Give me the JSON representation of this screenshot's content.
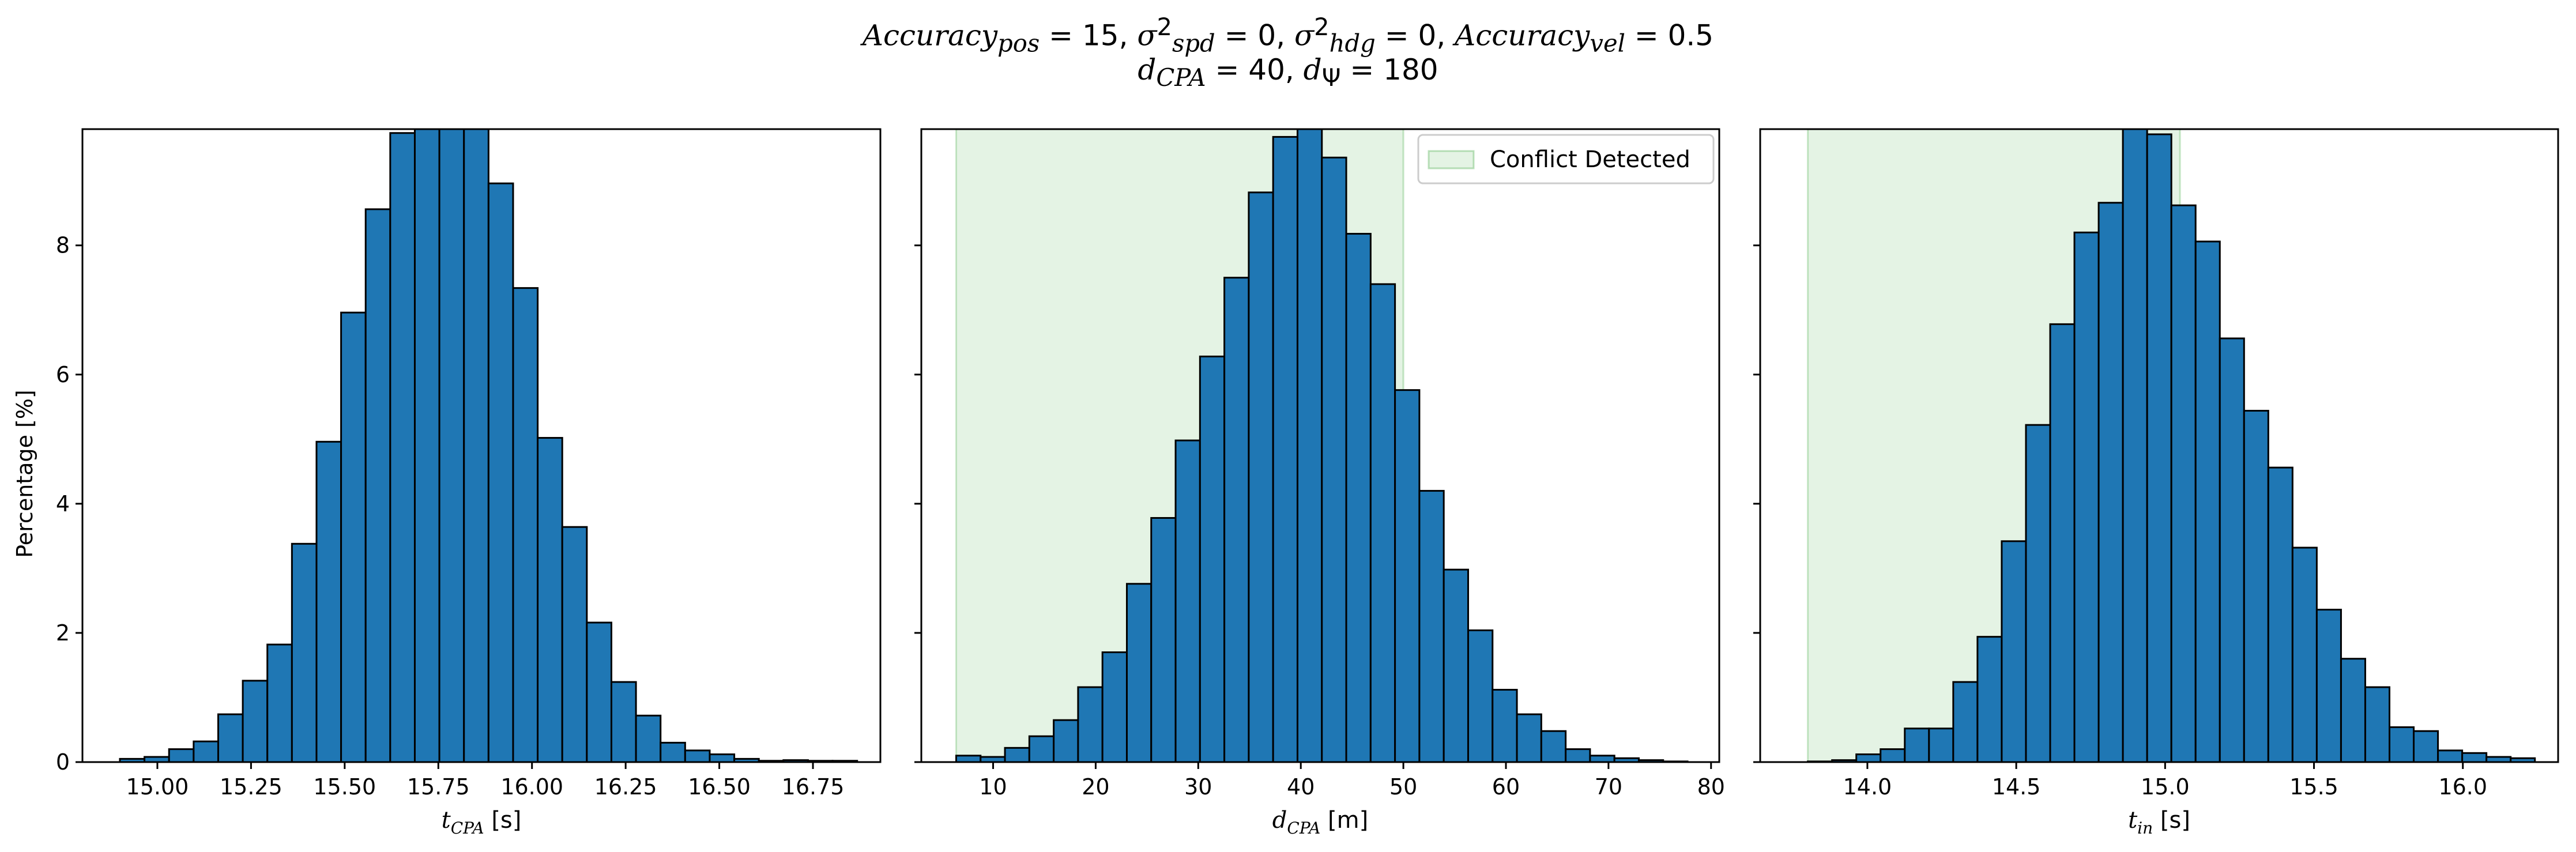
{
  "figure": {
    "title_line1_parts": {
      "acc_pos": "Accuracy",
      "acc_pos_sub": "pos",
      "acc_pos_val": " = 15, ",
      "sigma": "σ",
      "spd_sup": "2",
      "spd_sub": "spd",
      "spd_val": " = 0, ",
      "hdg_sup": "2",
      "hdg_sub": "hdg",
      "hdg_val": " = 0, ",
      "acc_vel": "Accuracy",
      "acc_vel_sub": "vel",
      "acc_vel_val": " = 0.5"
    },
    "title_line2_parts": {
      "d": "d",
      "cpa_sub": "CPA",
      "cpa_val": " = 40, ",
      "psi_sub": "Ψ",
      "psi_val": " = 180"
    },
    "ylabel": "Percentage [%]",
    "bar_color": "#1f77b4",
    "shade_color": "#2ca02c"
  },
  "chart_data": [
    {
      "type": "bar",
      "xlabel": "t_CPA [s]",
      "xlabel_main": "t",
      "xlabel_sub": "CPA",
      "xlabel_unit": " [s]",
      "xlim": [
        14.8,
        16.93
      ],
      "ylim": [
        0,
        9.8
      ],
      "xticks": [
        15.0,
        15.25,
        15.5,
        15.75,
        16.0,
        16.25,
        16.5,
        16.75
      ],
      "xtick_labels": [
        "15.00",
        "15.25",
        "15.50",
        "15.75",
        "16.00",
        "16.25",
        "16.50",
        "16.75"
      ],
      "yticks": [
        0,
        2,
        4,
        6,
        8
      ],
      "ytick_labels": [
        "0",
        "2",
        "4",
        "6",
        "8"
      ],
      "bin_start": 14.9,
      "bin_width": 0.0656,
      "values": [
        0.05,
        0.08,
        0.2,
        0.32,
        0.74,
        1.26,
        1.82,
        3.38,
        4.96,
        6.96,
        8.56,
        9.74,
        9.85,
        9.85,
        9.85,
        8.96,
        7.34,
        5.02,
        3.64,
        2.16,
        1.24,
        0.72,
        0.3,
        0.18,
        0.12,
        0.05,
        0.02,
        0.03,
        0.02,
        0.02
      ],
      "shaded_region": null,
      "legend": null
    },
    {
      "type": "bar",
      "xlabel": "d_CPA [m]",
      "xlabel_main": "d",
      "xlabel_sub": "CPA",
      "xlabel_unit": " [m]",
      "xlim": [
        3.0,
        80.8
      ],
      "ylim": [
        0,
        9.8
      ],
      "xticks": [
        10,
        20,
        30,
        40,
        50,
        60,
        70,
        80
      ],
      "xtick_labels": [
        "10",
        "20",
        "30",
        "40",
        "50",
        "60",
        "70",
        "80"
      ],
      "yticks": [
        0,
        2,
        4,
        6,
        8
      ],
      "ytick_labels": [
        "",
        "",
        "",
        "",
        ""
      ],
      "bin_start": 6.4,
      "bin_width": 2.377,
      "values": [
        0.1,
        0.08,
        0.22,
        0.4,
        0.65,
        1.16,
        1.7,
        2.76,
        3.78,
        4.98,
        6.28,
        7.5,
        8.82,
        9.68,
        9.85,
        9.36,
        8.18,
        7.4,
        5.76,
        4.2,
        2.98,
        2.04,
        1.12,
        0.74,
        0.48,
        0.2,
        0.1,
        0.06,
        0.03,
        0.01
      ],
      "shaded_region": [
        6.4,
        50.0
      ],
      "legend": {
        "label": "Conflict Detected",
        "position": "upper right"
      }
    },
    {
      "type": "bar",
      "xlabel": "t_in [s]",
      "xlabel_main": "t",
      "xlabel_sub": "in",
      "xlabel_unit": " [s]",
      "xlim": [
        13.64,
        16.32
      ],
      "ylim": [
        0,
        9.8
      ],
      "xticks": [
        14.0,
        14.5,
        15.0,
        15.5,
        16.0
      ],
      "xtick_labels": [
        "14.0",
        "14.5",
        "15.0",
        "15.5",
        "16.0"
      ],
      "yticks": [
        0,
        2,
        4,
        6,
        8
      ],
      "ytick_labels": [
        "",
        "",
        "",
        "",
        ""
      ],
      "bin_start": 13.8,
      "bin_width": 0.0814,
      "values": [
        0.01,
        0.03,
        0.12,
        0.2,
        0.52,
        0.52,
        1.24,
        1.94,
        3.42,
        5.22,
        6.78,
        8.2,
        8.66,
        9.85,
        9.72,
        8.62,
        8.06,
        6.56,
        5.44,
        4.56,
        3.32,
        2.36,
        1.6,
        1.16,
        0.54,
        0.48,
        0.18,
        0.14,
        0.08,
        0.06
      ],
      "shaded_region": [
        13.8,
        15.05
      ],
      "legend": null
    }
  ]
}
